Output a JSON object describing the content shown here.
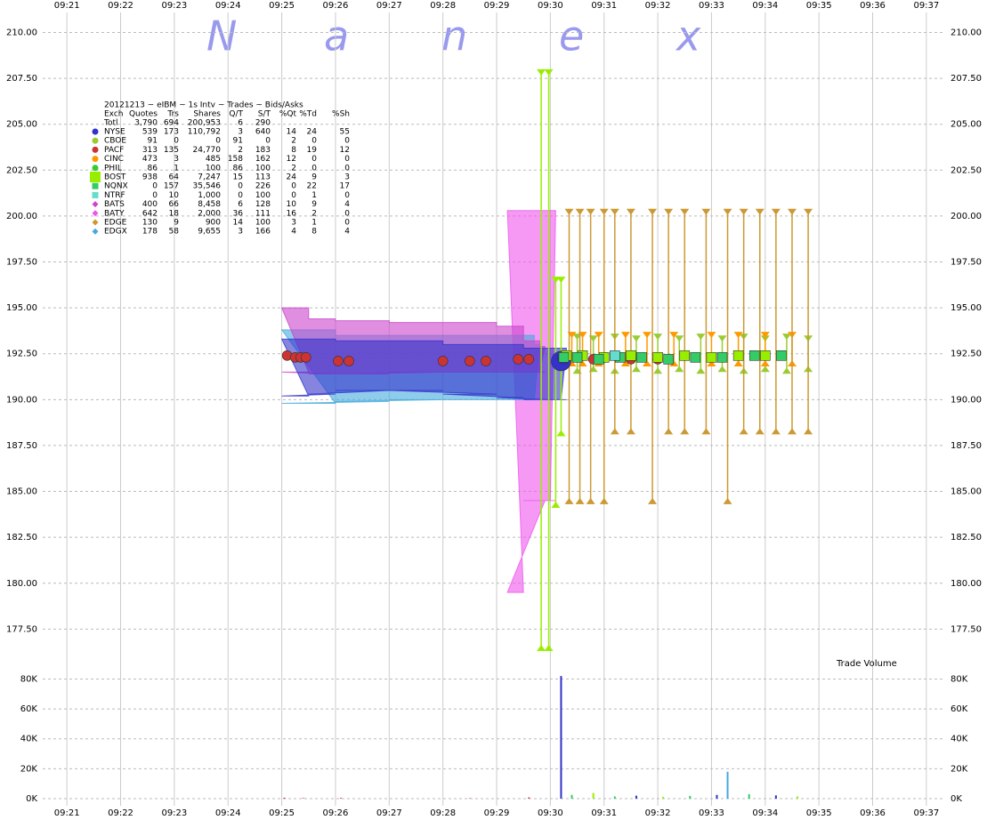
{
  "watermark": [
    "N",
    "a",
    "n",
    "e",
    "x"
  ],
  "chart_data": [
    {
      "type": "price",
      "title": "20121213 ~ eIBM ~ 1s Intv ~ Trades ~ Bids/Asks",
      "table_header": [
        "Exch",
        "Quotes",
        "Trs",
        "Shares",
        "Q/T",
        "S/T",
        "%Qt",
        "%Td",
        "%Sh"
      ],
      "table_total": [
        "Totl",
        "3,790",
        "694",
        "200,953",
        "6",
        "290"
      ],
      "xlim": [
        20.55,
        37.35
      ],
      "xticks": [
        {
          "value": 21,
          "label": "09:21"
        },
        {
          "value": 22,
          "label": "09:22"
        },
        {
          "value": 23,
          "label": "09:23"
        },
        {
          "value": 24,
          "label": "09:24"
        },
        {
          "value": 25,
          "label": "09:25"
        },
        {
          "value": 26,
          "label": "09:26"
        },
        {
          "value": 27,
          "label": "09:27"
        },
        {
          "value": 28,
          "label": "09:28"
        },
        {
          "value": 29,
          "label": "09:29"
        },
        {
          "value": 30,
          "label": "09:30"
        },
        {
          "value": 31,
          "label": "09:31"
        },
        {
          "value": 32,
          "label": "09:32"
        },
        {
          "value": 33,
          "label": "09:33"
        },
        {
          "value": 34,
          "label": "09:34"
        },
        {
          "value": 35,
          "label": "09:35"
        },
        {
          "value": 36,
          "label": "09:36"
        },
        {
          "value": 37,
          "label": "09:37"
        }
      ],
      "ylim": [
        176.5,
        210.75
      ],
      "yticks": [
        {
          "value": 210,
          "label": "210.00"
        },
        {
          "value": 207.5,
          "label": "207.50"
        },
        {
          "value": 205,
          "label": "205.00"
        },
        {
          "value": 202.5,
          "label": "202.50"
        },
        {
          "value": 200,
          "label": "200.00"
        },
        {
          "value": 197.5,
          "label": "197.50"
        },
        {
          "value": 195,
          "label": "195.00"
        },
        {
          "value": 192.5,
          "label": "192.50"
        },
        {
          "value": 190,
          "label": "190.00"
        },
        {
          "value": 187.5,
          "label": "187.50"
        },
        {
          "value": 185,
          "label": "185.00"
        },
        {
          "value": 182.5,
          "label": "182.50"
        },
        {
          "value": 180,
          "label": "180.00"
        },
        {
          "value": 177.5,
          "label": "177.50"
        }
      ],
      "grid": true,
      "series": [
        {
          "name": "NYSE",
          "color": "#3333cc",
          "marker": "circle",
          "stats": [
            "539",
            "173",
            "110,792",
            "3",
            "640",
            "14",
            "24",
            "55"
          ],
          "quote_style": "band",
          "quotes": {
            "x": [
              25.0,
              25.5,
              26.0,
              27.0,
              28.0,
              29.0,
              29.5,
              30.0,
              30.2
            ],
            "ask": [
              193.3,
              193.3,
              193.2,
              193.2,
              193.0,
              193.0,
              192.8,
              192.8,
              192.8
            ],
            "bid": [
              190.2,
              190.3,
              190.5,
              190.5,
              190.3,
              190.1,
              190.0,
              190.0,
              190.0
            ]
          },
          "trades": {
            "x": [
              30.2,
              30.22,
              30.25
            ],
            "values": [
              192.1,
              192.3,
              192.2
            ]
          }
        },
        {
          "name": "CBOE",
          "color": "#99cc33",
          "marker": "circle",
          "stats": [
            "91",
            "0",
            "0",
            "91",
            "0",
            "2",
            "0",
            "0"
          ],
          "quote_style": "lines",
          "quotes": {
            "x": [
              30.5,
              30.8,
              31.2,
              31.6,
              32.0,
              32.4,
              32.8,
              33.2,
              33.6,
              34.0,
              34.4,
              34.8
            ],
            "ask": [
              193.4,
              193.3,
              193.4,
              193.3,
              193.4,
              193.3,
              193.4,
              193.3,
              193.4,
              193.3,
              193.4,
              193.3
            ],
            "bid": [
              191.6,
              191.7,
              191.6,
              191.7,
              191.6,
              191.7,
              191.6,
              191.7,
              191.6,
              191.7,
              191.6,
              191.7
            ]
          }
        },
        {
          "name": "PACF",
          "color": "#cc3333",
          "marker": "circle",
          "stats": [
            "313",
            "135",
            "24,770",
            "2",
            "183",
            "8",
            "19",
            "12"
          ],
          "trades": {
            "x": [
              25.1,
              25.25,
              25.35,
              25.45,
              26.05,
              26.25,
              28.0,
              28.5,
              28.8,
              29.4,
              29.6,
              30.8,
              31.5,
              32.0
            ],
            "values": [
              192.4,
              192.3,
              192.3,
              192.3,
              192.1,
              192.1,
              192.1,
              192.1,
              192.1,
              192.2,
              192.2,
              192.2,
              192.2,
              192.2
            ]
          }
        },
        {
          "name": "CINC",
          "color": "#ff9900",
          "marker": "circle",
          "stats": [
            "473",
            "3",
            "485",
            "158",
            "162",
            "12",
            "0",
            "0"
          ],
          "quote_style": "lines",
          "quotes": {
            "x": [
              30.4,
              30.6,
              30.9,
              31.4,
              31.8,
              32.3,
              33.0,
              33.5,
              34.0,
              34.5
            ],
            "ask": [
              193.5,
              193.5,
              193.5,
              193.5,
              193.5,
              193.5,
              193.5,
              193.5,
              193.5,
              193.5
            ],
            "bid": [
              192.0,
              192.0,
              192.0,
              192.0,
              192.0,
              192.0,
              192.0,
              192.0,
              192.0,
              192.0
            ]
          }
        },
        {
          "name": "PHIL",
          "color": "#33cc33",
          "marker": "circle",
          "stats": [
            "86",
            "1",
            "100",
            "86",
            "100",
            "2",
            "0",
            "0"
          ],
          "trades": {
            "x": [
              31.0
            ],
            "values": [
              192.3
            ]
          }
        },
        {
          "name": "BOST",
          "color": "#99ee00",
          "marker": "square",
          "stats": [
            "938",
            "64",
            "7,247",
            "15",
            "113",
            "24",
            "9",
            "3"
          ],
          "quote_style": "lines",
          "quotes": {
            "x": [
              29.83,
              29.97,
              30.1,
              30.2
            ],
            "ask": [
              207.8,
              207.8,
              196.5,
              196.5
            ],
            "bid": [
              176.5,
              176.5,
              184.3,
              188.2
            ]
          },
          "trades": {
            "x": [
              30.3,
              30.6,
              31.0,
              31.5,
              32.0,
              32.5,
              33.0,
              33.5,
              34.0
            ],
            "values": [
              192.4,
              192.4,
              192.3,
              192.4,
              192.3,
              192.4,
              192.3,
              192.4,
              192.4
            ]
          }
        },
        {
          "name": "NQNX",
          "color": "#33cc66",
          "marker": "square",
          "stats": [
            "0",
            "157",
            "35,546",
            "0",
            "226",
            "0",
            "22",
            "17"
          ],
          "trades": {
            "x": [
              30.25,
              30.5,
              30.9,
              31.3,
              31.7,
              32.2,
              32.7,
              33.2,
              33.8,
              34.3
            ],
            "values": [
              192.3,
              192.3,
              192.2,
              192.3,
              192.3,
              192.2,
              192.3,
              192.3,
              192.4,
              192.4
            ]
          }
        },
        {
          "name": "NTRF",
          "color": "#66ddcc",
          "marker": "square",
          "stats": [
            "0",
            "10",
            "1,000",
            "0",
            "100",
            "0",
            "1",
            "0"
          ],
          "trades": {
            "x": [
              31.2
            ],
            "values": [
              192.4
            ]
          }
        },
        {
          "name": "BATS",
          "color": "#cc44cc",
          "marker": "diamond",
          "stats": [
            "400",
            "66",
            "8,458",
            "6",
            "128",
            "10",
            "9",
            "4"
          ],
          "quote_style": "band",
          "quotes": {
            "x": [
              25.0,
              25.5,
              26.0,
              27.0,
              28.0,
              29.0,
              29.5,
              29.8
            ],
            "ask": [
              195.0,
              194.4,
              194.3,
              194.2,
              194.2,
              194.0,
              193.2,
              192.9
            ],
            "bid": [
              191.5,
              191.4,
              191.4,
              191.5,
              191.5,
              191.5,
              191.5,
              191.5
            ]
          }
        },
        {
          "name": "BATY",
          "color": "#ee55ee",
          "marker": "diamond",
          "stats": [
            "642",
            "18",
            "2,000",
            "36",
            "111",
            "16",
            "2",
            "0"
          ],
          "quote_style": "band",
          "quotes": {
            "x": [
              29.2,
              29.5,
              29.9,
              30.0
            ],
            "ask": [
              200.3,
              200.3,
              200.3,
              200.3
            ],
            "bid": [
              179.5,
              184.5,
              184.5,
              184.5
            ]
          }
        },
        {
          "name": "EDGE",
          "color": "#cc9933",
          "marker": "diamond",
          "stats": [
            "130",
            "9",
            "900",
            "14",
            "100",
            "3",
            "1",
            "0"
          ],
          "quote_style": "lines",
          "quotes": {
            "x": [
              30.35,
              30.55,
              30.75,
              31.0,
              31.2,
              31.5,
              31.9,
              32.2,
              32.5,
              32.9,
              33.3,
              33.6,
              33.9,
              34.2,
              34.5,
              34.8
            ],
            "ask": [
              200.2,
              200.2,
              200.2,
              200.2,
              200.2,
              200.2,
              200.2,
              200.2,
              200.2,
              200.2,
              200.2,
              200.2,
              200.2,
              200.2,
              200.2,
              200.2
            ],
            "bid": [
              184.5,
              184.5,
              184.5,
              184.5,
              188.3,
              188.3,
              184.5,
              188.3,
              188.3,
              188.3,
              184.5,
              188.3,
              188.3,
              188.3,
              188.3,
              188.3
            ]
          }
        },
        {
          "name": "EDGX",
          "color": "#44aadd",
          "marker": "diamond",
          "stats": [
            "178",
            "58",
            "9,655",
            "3",
            "166",
            "4",
            "8",
            "4"
          ],
          "quote_style": "band",
          "quotes": {
            "x": [
              25.0,
              26.0,
              27.0,
              28.0,
              29.0,
              29.7
            ],
            "ask": [
              193.8,
              193.5,
              193.5,
              193.5,
              193.5,
              193.0
            ],
            "bid": [
              189.8,
              189.9,
              190.0,
              190.0,
              190.0,
              190.0
            ]
          }
        }
      ]
    },
    {
      "type": "volume",
      "title": "Trade Volume",
      "xlim": [
        20.55,
        37.35
      ],
      "ylim": [
        0,
        88000
      ],
      "yticks": [
        {
          "value": 80000,
          "label": "80K"
        },
        {
          "value": 60000,
          "label": "60K"
        },
        {
          "value": 40000,
          "label": "40K"
        },
        {
          "value": 20000,
          "label": "20K"
        },
        {
          "value": 0,
          "label": "0K"
        }
      ],
      "grid": true,
      "x": [
        25.05,
        25.4,
        26.1,
        28.5,
        29.6,
        30.2,
        30.4,
        30.8,
        31.2,
        31.6,
        32.1,
        32.6,
        33.1,
        33.3,
        33.7,
        34.2,
        34.6
      ],
      "values": [
        600,
        400,
        500,
        300,
        800,
        82000,
        2500,
        3800,
        1500,
        2000,
        1200,
        1800,
        2500,
        18000,
        3000,
        2200,
        1500
      ],
      "colors": [
        "#cc3333",
        "#cc3333",
        "#cc3333",
        "#cc3333",
        "#cc3333",
        "#3333cc",
        "#33cc66",
        "#99ee00",
        "#33cc66",
        "#3333cc",
        "#99ee00",
        "#33cc66",
        "#3333cc",
        "#44aadd",
        "#33cc66",
        "#3333cc",
        "#99ee00"
      ]
    }
  ]
}
